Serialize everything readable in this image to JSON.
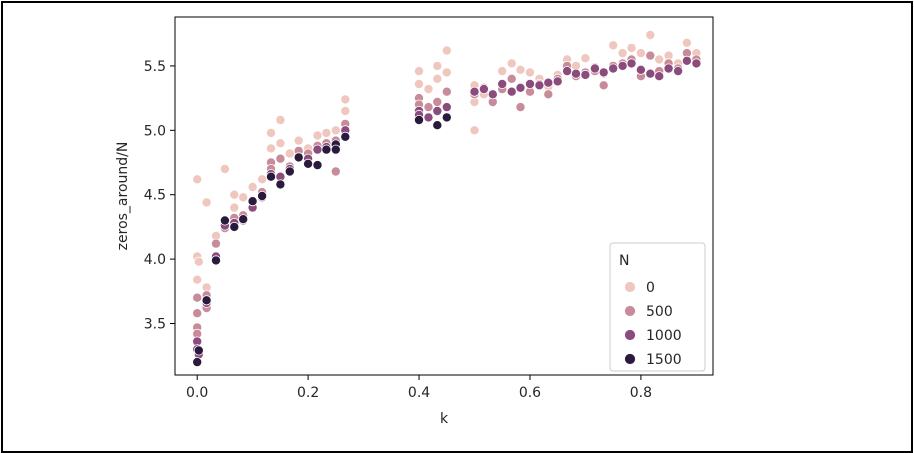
{
  "chart_data": {
    "type": "scatter",
    "xlabel": "k",
    "ylabel": "zeros_around/N",
    "xlim": [
      -0.04,
      0.93
    ],
    "ylim": [
      3.1,
      5.88
    ],
    "xticks": [
      0.0,
      0.2,
      0.4,
      0.6,
      0.8
    ],
    "xtick_labels": [
      "0.0",
      "0.2",
      "0.4",
      "0.6",
      "0.8"
    ],
    "yticks": [
      3.5,
      4.0,
      4.5,
      5.0,
      5.5
    ],
    "ytick_labels": [
      "3.5",
      "4.0",
      "4.5",
      "5.0",
      "5.5"
    ],
    "grid": false,
    "legend": {
      "title": "N",
      "placement": "lower-right",
      "entries": [
        {
          "label": "0",
          "color": "#efc7be"
        },
        {
          "label": "500",
          "color": "#c78b9a"
        },
        {
          "label": "1000",
          "color": "#8b4c7d"
        },
        {
          "label": "1500",
          "color": "#2a1a3e"
        }
      ]
    },
    "series": [
      {
        "N": 0,
        "color": "#efc7be",
        "points": [
          [
            0.0,
            4.62
          ],
          [
            0.0,
            4.02
          ],
          [
            0.0,
            3.84
          ],
          [
            0.003,
            3.98
          ],
          [
            0.017,
            4.44
          ],
          [
            0.017,
            3.78
          ],
          [
            0.034,
            4.18
          ],
          [
            0.05,
            4.7
          ],
          [
            0.067,
            4.5
          ],
          [
            0.067,
            4.4
          ],
          [
            0.083,
            4.48
          ],
          [
            0.1,
            4.56
          ],
          [
            0.117,
            4.62
          ],
          [
            0.133,
            4.98
          ],
          [
            0.133,
            4.86
          ],
          [
            0.15,
            5.08
          ],
          [
            0.15,
            4.9
          ],
          [
            0.167,
            4.82
          ],
          [
            0.183,
            4.92
          ],
          [
            0.2,
            4.86
          ],
          [
            0.217,
            4.96
          ],
          [
            0.233,
            4.98
          ],
          [
            0.25,
            5.0
          ],
          [
            0.267,
            5.24
          ],
          [
            0.267,
            5.15
          ],
          [
            0.4,
            5.46
          ],
          [
            0.4,
            5.36
          ],
          [
            0.417,
            5.32
          ],
          [
            0.433,
            5.5
          ],
          [
            0.433,
            5.4
          ],
          [
            0.45,
            5.62
          ],
          [
            0.45,
            5.45
          ],
          [
            0.5,
            5.0
          ],
          [
            0.5,
            5.22
          ],
          [
            0.5,
            5.35
          ],
          [
            0.517,
            5.28
          ],
          [
            0.533,
            5.24
          ],
          [
            0.55,
            5.46
          ],
          [
            0.567,
            5.52
          ],
          [
            0.583,
            5.47
          ],
          [
            0.6,
            5.45
          ],
          [
            0.617,
            5.4
          ],
          [
            0.633,
            5.34
          ],
          [
            0.65,
            5.43
          ],
          [
            0.667,
            5.55
          ],
          [
            0.683,
            5.5
          ],
          [
            0.7,
            5.56
          ],
          [
            0.717,
            5.49
          ],
          [
            0.733,
            5.44
          ],
          [
            0.75,
            5.66
          ],
          [
            0.767,
            5.6
          ],
          [
            0.783,
            5.64
          ],
          [
            0.8,
            5.6
          ],
          [
            0.817,
            5.74
          ],
          [
            0.833,
            5.55
          ],
          [
            0.85,
            5.58
          ],
          [
            0.867,
            5.52
          ],
          [
            0.883,
            5.68
          ],
          [
            0.9,
            5.6
          ]
        ]
      },
      {
        "N": 500,
        "color": "#c78b9a",
        "points": [
          [
            0.0,
            3.7
          ],
          [
            0.0,
            3.58
          ],
          [
            0.0,
            3.47
          ],
          [
            0.0,
            3.42
          ],
          [
            0.017,
            3.62
          ],
          [
            0.017,
            3.72
          ],
          [
            0.034,
            4.12
          ],
          [
            0.05,
            4.24
          ],
          [
            0.067,
            4.32
          ],
          [
            0.083,
            4.34
          ],
          [
            0.1,
            4.44
          ],
          [
            0.117,
            4.52
          ],
          [
            0.133,
            4.75
          ],
          [
            0.133,
            4.7
          ],
          [
            0.15,
            4.78
          ],
          [
            0.167,
            4.72
          ],
          [
            0.183,
            4.84
          ],
          [
            0.2,
            4.82
          ],
          [
            0.217,
            4.88
          ],
          [
            0.233,
            4.9
          ],
          [
            0.25,
            4.68
          ],
          [
            0.25,
            4.92
          ],
          [
            0.267,
            5.05
          ],
          [
            0.4,
            5.25
          ],
          [
            0.4,
            5.2
          ],
          [
            0.417,
            5.18
          ],
          [
            0.433,
            5.22
          ],
          [
            0.45,
            5.3
          ],
          [
            0.5,
            5.28
          ],
          [
            0.517,
            5.33
          ],
          [
            0.533,
            5.22
          ],
          [
            0.55,
            5.32
          ],
          [
            0.567,
            5.4
          ],
          [
            0.583,
            5.18
          ],
          [
            0.6,
            5.3
          ],
          [
            0.617,
            5.36
          ],
          [
            0.633,
            5.28
          ],
          [
            0.65,
            5.4
          ],
          [
            0.667,
            5.5
          ],
          [
            0.683,
            5.42
          ],
          [
            0.7,
            5.45
          ],
          [
            0.717,
            5.46
          ],
          [
            0.733,
            5.35
          ],
          [
            0.75,
            5.5
          ],
          [
            0.767,
            5.52
          ],
          [
            0.783,
            5.55
          ],
          [
            0.8,
            5.42
          ],
          [
            0.817,
            5.58
          ],
          [
            0.833,
            5.46
          ],
          [
            0.85,
            5.52
          ],
          [
            0.867,
            5.48
          ],
          [
            0.883,
            5.6
          ],
          [
            0.9,
            5.55
          ]
        ]
      },
      {
        "N": 1000,
        "color": "#8b4c7d",
        "points": [
          [
            0.0,
            3.36
          ],
          [
            0.0,
            3.3
          ],
          [
            0.003,
            3.26
          ],
          [
            0.017,
            3.66
          ],
          [
            0.034,
            4.02
          ],
          [
            0.05,
            4.26
          ],
          [
            0.067,
            4.28
          ],
          [
            0.083,
            4.3
          ],
          [
            0.1,
            4.4
          ],
          [
            0.117,
            4.48
          ],
          [
            0.133,
            4.66
          ],
          [
            0.15,
            4.64
          ],
          [
            0.167,
            4.7
          ],
          [
            0.183,
            4.79
          ],
          [
            0.2,
            4.78
          ],
          [
            0.217,
            4.85
          ],
          [
            0.233,
            4.87
          ],
          [
            0.25,
            4.86
          ],
          [
            0.267,
            5.0
          ],
          [
            0.4,
            5.15
          ],
          [
            0.4,
            5.12
          ],
          [
            0.417,
            5.1
          ],
          [
            0.433,
            5.15
          ],
          [
            0.45,
            5.18
          ],
          [
            0.5,
            5.3
          ],
          [
            0.517,
            5.32
          ],
          [
            0.533,
            5.28
          ],
          [
            0.55,
            5.36
          ],
          [
            0.567,
            5.3
          ],
          [
            0.583,
            5.33
          ],
          [
            0.6,
            5.36
          ],
          [
            0.617,
            5.35
          ],
          [
            0.633,
            5.37
          ],
          [
            0.65,
            5.38
          ],
          [
            0.667,
            5.46
          ],
          [
            0.683,
            5.44
          ],
          [
            0.7,
            5.43
          ],
          [
            0.717,
            5.48
          ],
          [
            0.733,
            5.45
          ],
          [
            0.75,
            5.48
          ],
          [
            0.767,
            5.5
          ],
          [
            0.783,
            5.52
          ],
          [
            0.8,
            5.47
          ],
          [
            0.817,
            5.44
          ],
          [
            0.833,
            5.42
          ],
          [
            0.85,
            5.48
          ],
          [
            0.867,
            5.46
          ],
          [
            0.883,
            5.54
          ],
          [
            0.9,
            5.52
          ]
        ]
      },
      {
        "N": 1500,
        "color": "#2a1a3e",
        "points": [
          [
            0.0,
            3.2
          ],
          [
            0.003,
            3.29
          ],
          [
            0.017,
            3.68
          ],
          [
            0.034,
            3.99
          ],
          [
            0.05,
            4.3
          ],
          [
            0.067,
            4.25
          ],
          [
            0.083,
            4.31
          ],
          [
            0.1,
            4.45
          ],
          [
            0.117,
            4.49
          ],
          [
            0.133,
            4.64
          ],
          [
            0.15,
            4.58
          ],
          [
            0.167,
            4.68
          ],
          [
            0.183,
            4.79
          ],
          [
            0.2,
            4.74
          ],
          [
            0.217,
            4.73
          ],
          [
            0.233,
            4.85
          ],
          [
            0.25,
            4.89
          ],
          [
            0.25,
            4.85
          ],
          [
            0.267,
            4.95
          ],
          [
            0.4,
            5.08
          ],
          [
            0.433,
            5.04
          ],
          [
            0.45,
            5.1
          ]
        ]
      }
    ]
  }
}
